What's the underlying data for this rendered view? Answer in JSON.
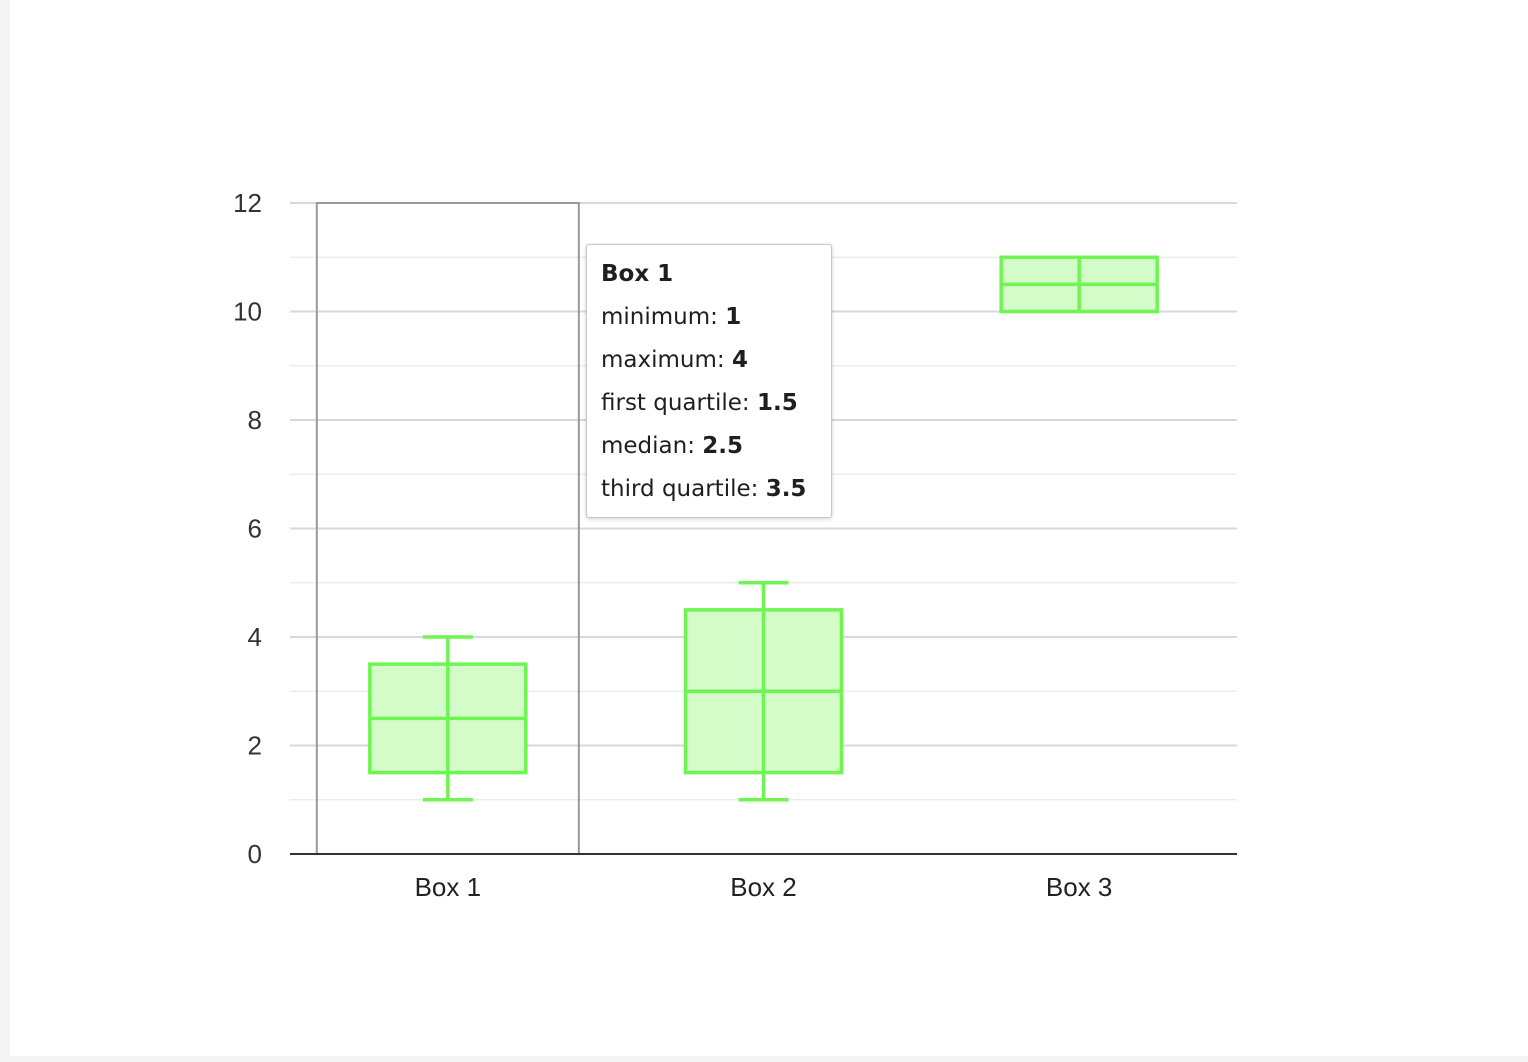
{
  "chart_data": {
    "type": "box",
    "categories": [
      "Box 1",
      "Box 2",
      "Box 3"
    ],
    "boxes": [
      {
        "name": "Box 1",
        "min": 1,
        "q1": 1.5,
        "median": 2.5,
        "q3": 3.5,
        "max": 4
      },
      {
        "name": "Box 2",
        "min": 1,
        "q1": 1.5,
        "median": 3,
        "q3": 4.5,
        "max": 5
      },
      {
        "name": "Box 3",
        "min": 10,
        "q1": 10,
        "median": 10.5,
        "q3": 11,
        "max": 11
      }
    ],
    "ylim": [
      0,
      12
    ],
    "yticks": [
      0,
      2,
      4,
      6,
      8,
      10,
      12
    ],
    "grid": true,
    "highlighted_category": "Box 1",
    "colors": {
      "box_stroke": "#6ff552",
      "box_fill": "#d4fcc8",
      "grid_major": "#d8d8d8",
      "grid_minor": "#ececec",
      "axis": "#333333",
      "highlight": "#999999"
    }
  },
  "tooltip": {
    "title": "Box 1",
    "rows": [
      {
        "label": "minimum:",
        "value": "1"
      },
      {
        "label": "maximum:",
        "value": "4"
      },
      {
        "label": "first quartile:",
        "value": "1.5"
      },
      {
        "label": "median:",
        "value": "2.5"
      },
      {
        "label": "third quartile:",
        "value": "3.5"
      }
    ]
  }
}
